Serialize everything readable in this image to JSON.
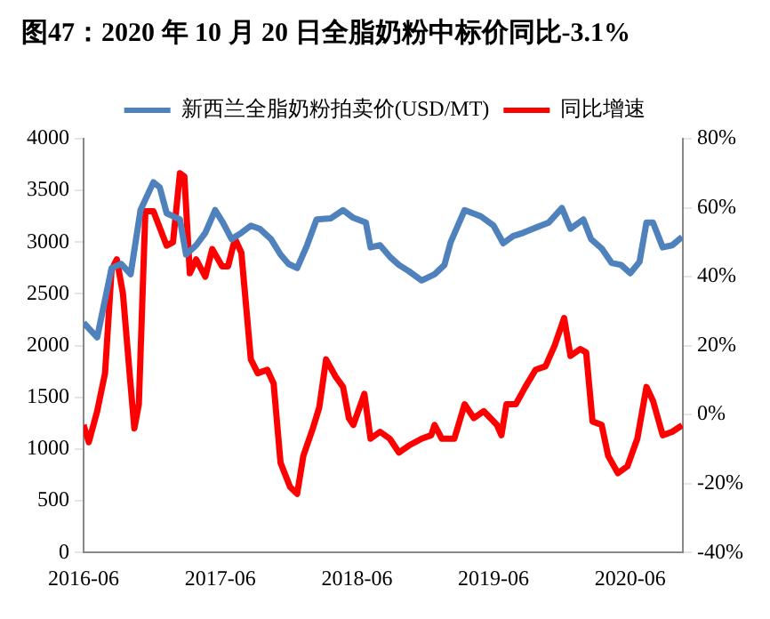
{
  "chart_data": {
    "type": "line",
    "title": "图47：2020 年 10 月 20 日全脂奶粉中标价同比-3.1%",
    "legend": "top",
    "grid": false,
    "marker": "none",
    "line_style": "solid",
    "xlim": [
      "2016-06",
      "2020-10-20"
    ],
    "xticks": [
      "2016-06",
      "2017-06",
      "2018-06",
      "2019-06",
      "2020-06"
    ],
    "ylim": [
      0,
      4000
    ],
    "yticks": [
      0,
      500,
      1000,
      1500,
      2000,
      2500,
      3000,
      3500,
      4000
    ],
    "y2lim": [
      -40,
      80
    ],
    "y2ticks": [
      {
        "value": -40,
        "label": "-40%"
      },
      {
        "value": -20,
        "label": "-20%"
      },
      {
        "value": 0,
        "label": "0%"
      },
      {
        "value": 20,
        "label": "20%"
      },
      {
        "value": 40,
        "label": "40%"
      },
      {
        "value": 60,
        "label": "60%"
      },
      {
        "value": 80,
        "label": "80%"
      }
    ],
    "series": [
      {
        "name": "新西兰全脂奶粉拍卖价(USD/MT)",
        "color": "#4f81bd",
        "x": [
          "2016-06-01",
          "2016-07-07",
          "2016-08-15",
          "2016-09-10",
          "2016-10-05",
          "2016-11-01",
          "2016-12-05",
          "2016-12-22",
          "2017-01-10",
          "2017-01-27",
          "2017-02-15",
          "2017-03-01",
          "2017-03-28",
          "2017-04-22",
          "2017-05-18",
          "2017-06-08",
          "2017-07-01",
          "2017-07-27",
          "2017-08-22",
          "2017-09-15",
          "2017-10-15",
          "2017-11-10",
          "2017-12-01",
          "2017-12-24",
          "2018-01-20",
          "2018-02-15",
          "2018-03-22",
          "2018-04-25",
          "2018-05-20",
          "2018-06-25",
          "2018-07-07",
          "2018-08-02",
          "2018-08-28",
          "2018-09-22",
          "2018-10-18",
          "2018-11-22",
          "2018-12-26",
          "2019-01-22",
          "2019-02-08",
          "2019-03-15",
          "2019-04-28",
          "2019-06-01",
          "2019-06-27",
          "2019-07-23",
          "2019-08-19",
          "2019-09-22",
          "2019-10-27",
          "2019-12-01",
          "2019-12-24",
          "2020-01-28",
          "2020-02-18",
          "2020-03-16",
          "2020-04-12",
          "2020-05-07",
          "2020-06-01",
          "2020-06-26",
          "2020-07-14",
          "2020-08-01",
          "2020-08-27",
          "2020-09-22",
          "2020-10-18"
        ],
        "values": [
          2220,
          2080,
          2750,
          2790,
          2690,
          3310,
          3580,
          3530,
          3280,
          3250,
          3220,
          2880,
          2970,
          3090,
          3310,
          3190,
          3030,
          3090,
          3160,
          3130,
          3030,
          2880,
          2790,
          2750,
          2970,
          3220,
          3230,
          3310,
          3240,
          3190,
          2950,
          2970,
          2860,
          2780,
          2720,
          2630,
          2690,
          2780,
          3000,
          3310,
          3250,
          3160,
          2990,
          3060,
          3090,
          3140,
          3190,
          3330,
          3130,
          3220,
          3030,
          2940,
          2800,
          2780,
          2700,
          2810,
          3190,
          3190,
          2950,
          2970,
          3050
        ]
      },
      {
        "name": "同比增速",
        "color": "#ff0000",
        "axis": "y2",
        "x": [
          "2016-06-01",
          "2016-06-15",
          "2016-07-07",
          "2016-07-28",
          "2016-08-15",
          "2016-08-29",
          "2016-09-15",
          "2016-10-03",
          "2016-10-15",
          "2016-10-27",
          "2016-11-14",
          "2016-12-05",
          "2017-01-10",
          "2017-01-27",
          "2017-02-15",
          "2017-02-27",
          "2017-03-11",
          "2017-03-28",
          "2017-04-22",
          "2017-05-10",
          "2017-06-06",
          "2017-06-22",
          "2017-07-10",
          "2017-07-27",
          "2017-08-22",
          "2017-09-10",
          "2017-10-05",
          "2017-10-22",
          "2017-11-10",
          "2017-12-05",
          "2017-12-24",
          "2018-01-10",
          "2018-02-05",
          "2018-02-22",
          "2018-03-10",
          "2018-04-05",
          "2018-04-25",
          "2018-05-10",
          "2018-05-22",
          "2018-06-21",
          "2018-07-07",
          "2018-08-02",
          "2018-08-28",
          "2018-09-22",
          "2018-10-18",
          "2018-11-22",
          "2018-12-17",
          "2018-12-26",
          "2019-01-15",
          "2019-02-18",
          "2019-03-15",
          "2019-04-09",
          "2019-05-05",
          "2019-06-10",
          "2019-06-22",
          "2019-07-05",
          "2019-07-30",
          "2019-08-25",
          "2019-09-22",
          "2019-10-18",
          "2019-11-12",
          "2019-12-07",
          "2019-12-24",
          "2020-01-20",
          "2020-02-05",
          "2020-02-22",
          "2020-03-16",
          "2020-04-03",
          "2020-04-29",
          "2020-05-24",
          "2020-06-20",
          "2020-07-14",
          "2020-08-01",
          "2020-08-27",
          "2020-09-22",
          "2020-10-18"
        ],
        "values": [
          -3,
          -8,
          1,
          12,
          42,
          45,
          35,
          11,
          -4,
          3,
          59,
          59,
          49,
          50,
          70,
          69,
          41,
          45,
          40,
          48,
          43,
          43,
          51,
          47,
          16,
          12,
          13,
          9,
          -14,
          -21,
          -23,
          -12,
          -4,
          2,
          16,
          11,
          8,
          -1,
          -3,
          6,
          -7,
          -5,
          -7,
          -11,
          -9,
          -7,
          -6,
          -3,
          -7,
          -7,
          3,
          -1,
          1,
          -3,
          -6,
          3,
          3,
          8,
          13,
          14,
          20,
          28,
          17,
          19,
          18,
          -2,
          -3,
          -12,
          -17,
          -15,
          -7,
          8,
          4,
          -6,
          -5,
          -3.1
        ]
      }
    ]
  }
}
